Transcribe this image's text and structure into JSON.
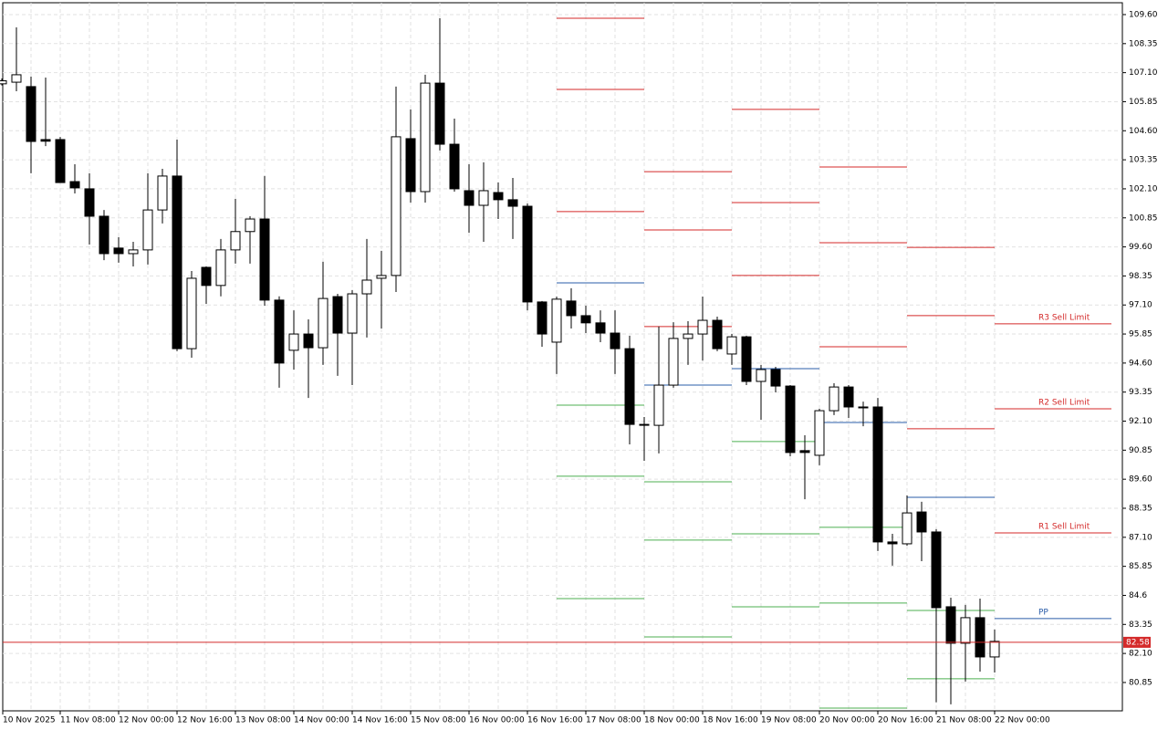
{
  "chart_data": {
    "type": "candlestick",
    "categories": [
      "10 Nov 2025",
      null,
      null,
      null,
      "11 Nov 08:00",
      null,
      null,
      null,
      "12 Nov 00:00",
      null,
      null,
      null,
      "12 Nov 16:00",
      null,
      null,
      null,
      "13 Nov 08:00",
      null,
      null,
      null,
      "14 Nov 00:00",
      null,
      null,
      null,
      "14 Nov 16:00",
      null,
      null,
      null,
      "15 Nov 08:00",
      null,
      null,
      null,
      "16 Nov 00:00",
      null,
      null,
      null,
      "16 Nov 16:00",
      null,
      null,
      null,
      "17 Nov 08:00",
      null,
      null,
      null,
      "18 Nov 00:00",
      null,
      null,
      null,
      "18 Nov 16:00",
      null,
      null,
      null,
      "19 Nov 08:00",
      null,
      null,
      null,
      "20 Nov 00:00",
      null,
      null,
      null,
      "20 Nov 16:00",
      null,
      null,
      null,
      "21 Nov 08:00",
      null,
      null,
      null,
      "22 Nov 00:00"
    ],
    "open": [
      106.62,
      106.69,
      106.5,
      104.22,
      104.22,
      102.41,
      102.1,
      100.92,
      99.55,
      99.31,
      99.47,
      101.19,
      102.65,
      95.22,
      98.72,
      97.94,
      99.47,
      100.26,
      100.8,
      97.31,
      95.15,
      95.85,
      95.26,
      97.46,
      95.89,
      97.58,
      98.25,
      98.37,
      104.26,
      101.98,
      106.65,
      104.02,
      102.02,
      101.39,
      101.94,
      101.63,
      101.35,
      97.23,
      95.5,
      97.27,
      96.64,
      96.33,
      95.89,
      95.22,
      91.96,
      91.92,
      93.65,
      95.66,
      95.85,
      96.44,
      94.99,
      95.73,
      93.81,
      94.32,
      93.61,
      90.83,
      90.63,
      92.55,
      93.57,
      92.71,
      92.71,
      86.9,
      86.82,
      88.19,
      87.33,
      84.11,
      82.54,
      83.64,
      81.95
    ],
    "high": [
      106.85,
      109.05,
      106.93,
      106.89,
      104.33,
      103.16,
      102.77,
      101.19,
      100.02,
      99.82,
      102.77,
      102.96,
      104.22,
      98.56,
      98.76,
      99.94,
      101.67,
      100.92,
      102.65,
      97.47,
      96.87,
      96.48,
      98.96,
      97.58,
      97.74,
      99.94,
      99.43,
      106.5,
      105.52,
      107.01,
      109.44,
      105.12,
      103.16,
      103.24,
      102.37,
      102.57,
      101.47,
      97.27,
      97.46,
      97.82,
      97.07,
      96.87,
      96.87,
      95.78,
      92.28,
      96.17,
      96.36,
      96.4,
      97.46,
      96.6,
      95.85,
      95.78,
      94.52,
      94.44,
      93.65,
      91.49,
      92.63,
      93.73,
      93.65,
      92.94,
      93.1,
      87.25,
      88.9,
      88.63,
      87.45,
      84.5,
      84.19,
      84.46,
      83.13
    ],
    "low": [
      106.55,
      106.3,
      102.77,
      103.94,
      102.37,
      101.9,
      99.7,
      99.03,
      98.92,
      98.76,
      98.84,
      100.61,
      95.11,
      94.83,
      97.15,
      97.47,
      98.88,
      98.88,
      97.07,
      93.54,
      94.32,
      93.1,
      94.52,
      94.05,
      93.65,
      95.7,
      96.09,
      97.66,
      101.51,
      101.51,
      103.75,
      101.98,
      100.21,
      99.82,
      100.8,
      99.94,
      96.87,
      95.3,
      94.13,
      96.09,
      95.89,
      95.5,
      94.13,
      91.1,
      90.39,
      90.71,
      93.54,
      94.52,
      94.71,
      95.11,
      94.52,
      93.65,
      92.16,
      93.34,
      90.59,
      88.74,
      90.2,
      92.36,
      92.24,
      91.88,
      86.51,
      85.88,
      86.74,
      86.07,
      80.0,
      79.91,
      80.89,
      81.32,
      81.28
    ],
    "close": [
      106.75,
      107.01,
      104.14,
      104.15,
      102.37,
      102.14,
      100.92,
      99.31,
      99.31,
      99.47,
      101.19,
      102.65,
      95.22,
      98.25,
      97.94,
      99.47,
      100.26,
      100.8,
      97.31,
      94.6,
      95.85,
      95.26,
      97.38,
      95.89,
      97.58,
      98.17,
      98.37,
      104.34,
      101.98,
      106.65,
      104.02,
      102.1,
      101.39,
      102.02,
      101.63,
      101.35,
      97.23,
      95.85,
      97.35,
      96.64,
      96.33,
      95.89,
      95.22,
      91.96,
      91.96,
      93.65,
      95.66,
      95.85,
      96.44,
      95.22,
      95.73,
      93.81,
      94.32,
      93.61,
      90.75,
      90.75,
      92.55,
      93.57,
      92.71,
      92.71,
      86.9,
      86.82,
      88.15,
      87.33,
      84.07,
      82.54,
      83.64,
      81.95,
      82.62
    ],
    "colors": {
      "up": "#ffffff",
      "down": "#000000",
      "outline": "#000000",
      "resistance": "#d42a2a",
      "pivot": "#2a5ca8",
      "support": "#4caf50",
      "last_price": "#d42a2a"
    },
    "pivots": [
      {
        "resistance": [
          101.12,
          106.38,
          109.44
        ],
        "pivot": 98.05,
        "support": [
          92.79,
          89.73,
          84.46
        ]
      },
      {
        "resistance": [
          96.17,
          100.33,
          102.84
        ],
        "pivot": 93.65,
        "support": [
          89.49,
          86.98,
          82.81
        ]
      },
      {
        "resistance": [
          98.37,
          101.51,
          105.52
        ],
        "pivot": 94.36,
        "support": [
          91.22,
          87.25,
          84.11
        ]
      },
      {
        "resistance": [
          95.3,
          99.78,
          103.04
        ],
        "pivot": 92.04,
        "support": [
          87.53,
          84.27,
          79.75
        ]
      },
      {
        "resistance": [
          91.77,
          96.64,
          99.58
        ],
        "pivot": 88.82,
        "support": [
          83.95,
          81.01
        ]
      },
      {
        "resistance": [
          87.29,
          92.63,
          96.29
        ],
        "pivot": 83.6,
        "support": [],
        "resistance_labels": [
          "R1 Sell Limit",
          "R2 Sell Limit",
          "R3 Sell Limit"
        ],
        "pivot_label": "PP"
      }
    ],
    "last_price": 82.58,
    "ylim": [
      79.63,
      110.11
    ],
    "yticks": [
      80.85,
      {
        "value": 82.1,
        "label": "82.10"
      },
      83.35,
      84.6,
      85.85,
      {
        "value": 87.1,
        "label": "87.10"
      },
      88.35,
      {
        "value": 89.6,
        "label": "89.60"
      },
      90.85,
      {
        "value": 92.1,
        "label": "92.10"
      },
      93.35,
      {
        "value": 94.6,
        "label": "94.60"
      },
      95.85,
      {
        "value": 97.1,
        "label": "97.10"
      },
      98.35,
      {
        "value": 99.6,
        "label": "99.60"
      },
      100.85,
      {
        "value": 102.1,
        "label": "102.10"
      },
      103.35,
      {
        "value": 104.6,
        "label": "104.60"
      },
      105.85,
      {
        "value": 107.1,
        "label": "107.10"
      },
      108.35,
      {
        "value": 109.6,
        "label": "109.60"
      }
    ],
    "grid": true
  }
}
